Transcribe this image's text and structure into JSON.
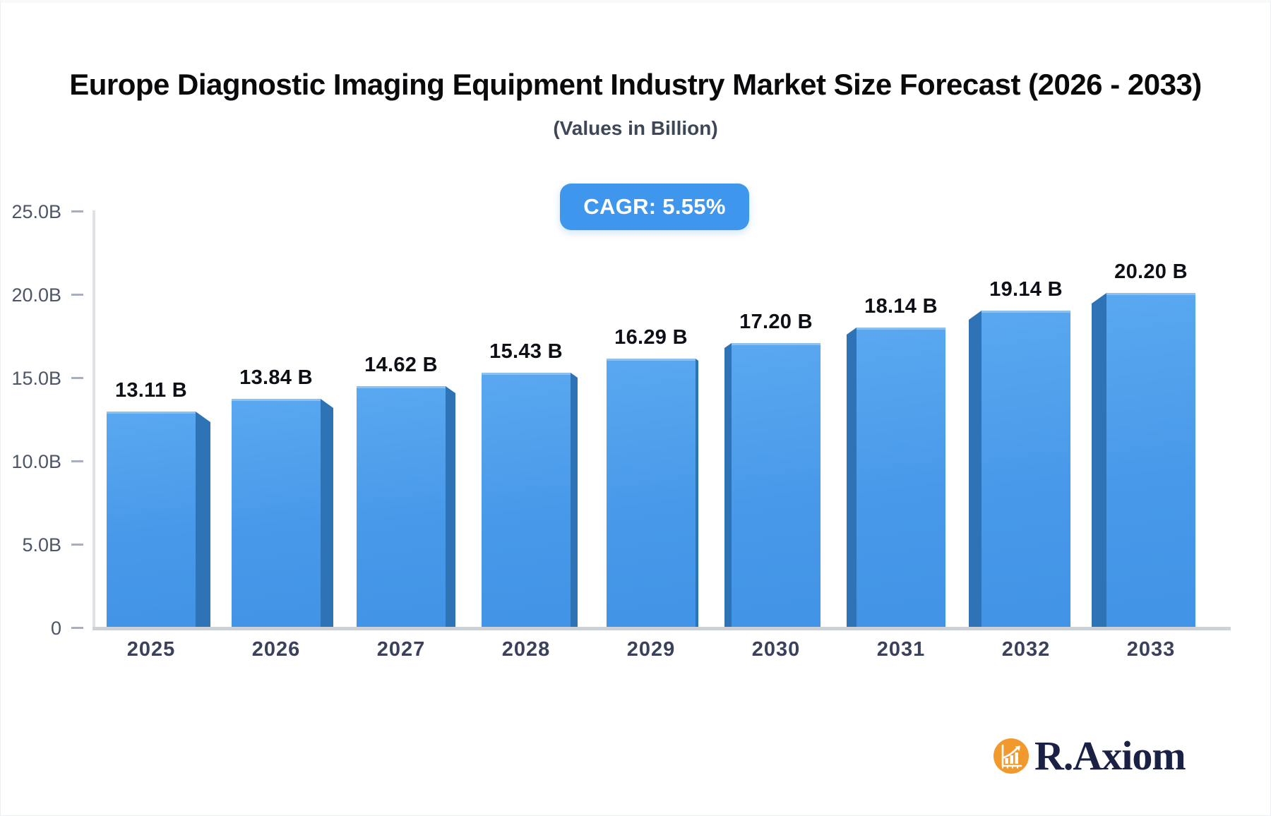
{
  "header": {
    "title": "Europe Diagnostic Imaging Equipment Industry Market Size Forecast (2026 - 2033)",
    "subtitle": "(Values in Billion)"
  },
  "badge": {
    "label": "CAGR: 5.55%",
    "bg_color": "#3E96ED",
    "text_color": "#FFFFFF"
  },
  "logo": {
    "text": "R.Axiom",
    "icon": "bar-chart-growth-icon",
    "circle_color": "#F2992E",
    "text_color": "#1B2144"
  },
  "chart_data": {
    "type": "bar",
    "title": "Europe Diagnostic Imaging Equipment Industry Market Size Forecast (2026 - 2033)",
    "subtitle": "(Values in Billion)",
    "cagr": "5.55%",
    "categories": [
      "2025",
      "2026",
      "2027",
      "2028",
      "2029",
      "2030",
      "2031",
      "2032",
      "2033"
    ],
    "values": [
      13.11,
      13.84,
      14.62,
      15.43,
      16.29,
      17.2,
      18.14,
      19.14,
      20.2
    ],
    "value_labels": [
      "13.11 B",
      "13.84 B",
      "14.62 B",
      "15.43 B",
      "16.29 B",
      "17.20 B",
      "18.14 B",
      "19.14 B",
      "20.20 B"
    ],
    "y_ticks": [
      "0",
      "5.0B",
      "10.0B",
      "15.0B",
      "20.0B",
      "25.0B"
    ],
    "ylim": [
      0,
      25
    ],
    "unit": "Billion",
    "grid": false,
    "legend": false,
    "bar_face_color_top": "#59A8F0",
    "bar_face_color_bottom": "#4193E6",
    "bar_side_color": "#2E73B5",
    "style": "3d-perspective-center-vanishing-point"
  }
}
